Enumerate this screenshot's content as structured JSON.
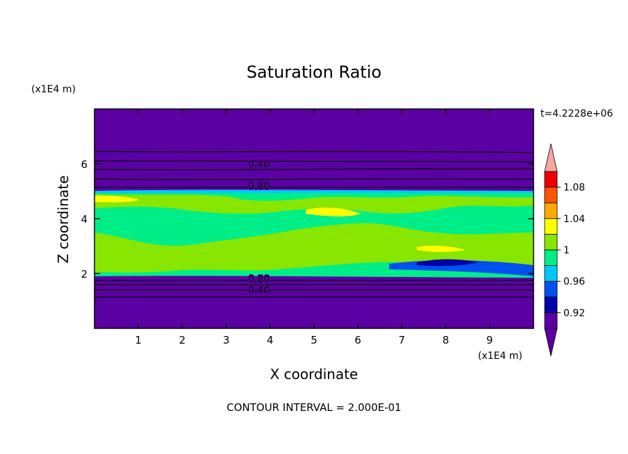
{
  "chart_data": {
    "type": "heatmap",
    "title": "Saturation Ratio",
    "xlabel": "X coordinate",
    "ylabel": "Z coordinate",
    "x_unit": "(x1E4 m)",
    "y_unit": "(x1E4 m)",
    "time_label": "t=4.2228e+06",
    "footer": "CONTOUR INTERVAL = 2.000E-01",
    "xlim": [
      0,
      10
    ],
    "ylim": [
      0,
      8
    ],
    "x_ticks": [
      1,
      2,
      3,
      4,
      5,
      6,
      7,
      8,
      9
    ],
    "y_ticks": [
      2,
      4,
      6
    ],
    "x_tick_labels": [
      "1",
      "2",
      "3",
      "4",
      "5",
      "6",
      "7",
      "8",
      "9"
    ],
    "y_tick_labels": [
      "2",
      "4",
      "6"
    ],
    "contour_lines": [
      {
        "label": "0.40",
        "z": 6.0
      },
      {
        "label": "0.80",
        "z": 5.2
      },
      {
        "label": "0.80",
        "z": 1.8
      },
      {
        "label": "0.40",
        "z": 1.4
      }
    ],
    "moist_layer_range": [
      1.9,
      4.95
    ],
    "colorbar": {
      "levels": [
        0.9,
        0.92,
        0.94,
        0.96,
        0.98,
        1.0,
        1.02,
        1.04,
        1.06,
        1.08,
        1.1
      ],
      "tick_labels": [
        "0.92",
        "0.96",
        "1",
        "1.04",
        "1.08"
      ],
      "tick_values": [
        0.92,
        0.96,
        1.0,
        1.04,
        1.08
      ],
      "colors": [
        "#5b00a3",
        "#0000aa",
        "#0050f0",
        "#00c8ff",
        "#00ee88",
        "#88e600",
        "#ffff00",
        "#ffaa00",
        "#ff5500",
        "#ee0000"
      ],
      "under_color": "#5b00a3",
      "over_color": "#f4a8a0"
    }
  }
}
